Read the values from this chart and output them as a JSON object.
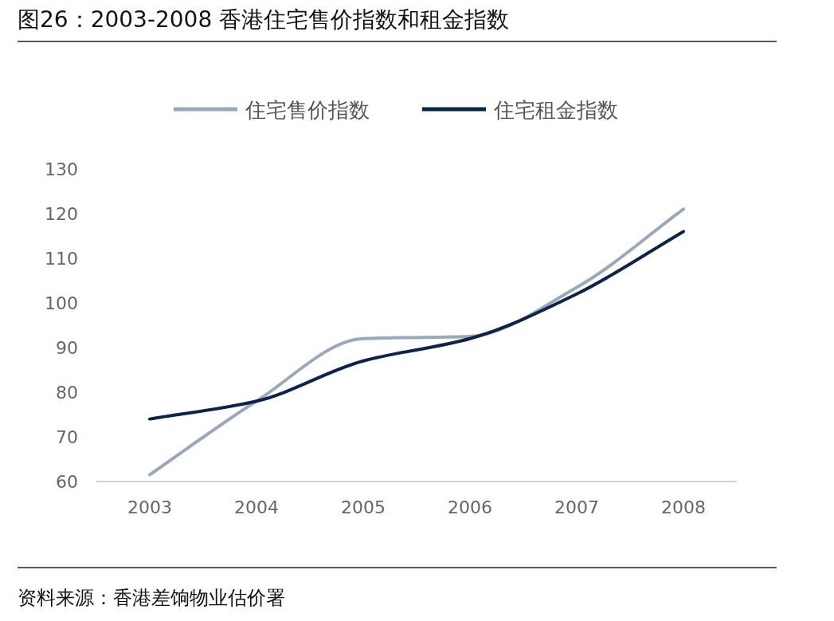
{
  "chart_data": {
    "type": "line",
    "title": "图26：2003-2008 香港住宅售价指数和租金指数",
    "categories": [
      "2003",
      "2004",
      "2005",
      "2006",
      "2007",
      "2008"
    ],
    "series": [
      {
        "name": "住宅售价指数",
        "color": "#9aa8b7",
        "values": [
          61.5,
          78,
          92,
          92.5,
          103.5,
          121
        ]
      },
      {
        "name": "住宅租金指数",
        "color": "#0e2446",
        "values": [
          74,
          78,
          87,
          92,
          102,
          116
        ]
      }
    ],
    "ylim": [
      60,
      130
    ],
    "yticks": [
      60,
      70,
      80,
      90,
      100,
      110,
      120,
      130
    ],
    "legend": "top",
    "annotations": [
      "资料来源：香港差饷物业估价署"
    ]
  }
}
